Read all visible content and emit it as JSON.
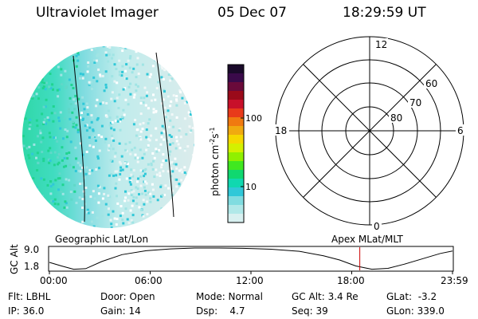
{
  "header": {
    "instrument": "Ultraviolet Imager",
    "date": "05 Dec 07",
    "time": "18:29:59 UT"
  },
  "colorbar": {
    "unit": "photon cm",
    "unit_exp1": "-2",
    "unit_s": "s",
    "unit_exp2": "-1",
    "tick_labels": [
      "100",
      "10"
    ],
    "colors": [
      "#1a0a2a",
      "#3a0a4a",
      "#6a0a3a",
      "#9a0a1a",
      "#c8102a",
      "#e83a1a",
      "#f07a10",
      "#f0aa10",
      "#f5d800",
      "#d4f000",
      "#90f000",
      "#40e820",
      "#10d870",
      "#10d8b0",
      "#30c8d8",
      "#80dce0",
      "#b0e8e8",
      "#d8f0f0"
    ]
  },
  "polar": {
    "mlt_labels": {
      "top": "12",
      "left": "18",
      "right": "6",
      "bottom": "0"
    },
    "lat_labels": [
      "60",
      "70",
      "80"
    ]
  },
  "strip": {
    "left_caption": "Geographic Lat/Lon",
    "right_caption": "Apex MLat/MLT",
    "axis_label": "GC Alt",
    "y_max": "9.0",
    "y_min": "1.8",
    "time_ticks": [
      "00:00",
      "06:00",
      "12:00",
      "18:00",
      "23:59"
    ],
    "current_time_fraction": 0.77,
    "alt_curve": [
      [
        0.0,
        4.2
      ],
      [
        0.03,
        3.0
      ],
      [
        0.06,
        1.9
      ],
      [
        0.09,
        2.1
      ],
      [
        0.13,
        4.5
      ],
      [
        0.18,
        6.8
      ],
      [
        0.24,
        8.1
      ],
      [
        0.3,
        8.7
      ],
      [
        0.36,
        9.0
      ],
      [
        0.42,
        9.0
      ],
      [
        0.48,
        8.9
      ],
      [
        0.55,
        8.6
      ],
      [
        0.62,
        7.9
      ],
      [
        0.68,
        6.4
      ],
      [
        0.72,
        5.0
      ],
      [
        0.76,
        3.0
      ],
      [
        0.8,
        1.9
      ],
      [
        0.84,
        2.2
      ],
      [
        0.88,
        3.6
      ],
      [
        0.93,
        5.6
      ],
      [
        0.97,
        7.2
      ],
      [
        1.0,
        8.0
      ]
    ]
  },
  "status": {
    "flt": "Flt: LBHL",
    "ip": "IP: 36.0",
    "door": "Door: Open",
    "gain": "Gain: 14",
    "mode": "Mode: Normal",
    "dsp": "Dsp:    4.7",
    "gc_alt": "GC Alt: 3.4 Re",
    "seq": "Seq: 39",
    "glat": "GLat:  -3.2",
    "glon": "GLon: 339.0"
  }
}
